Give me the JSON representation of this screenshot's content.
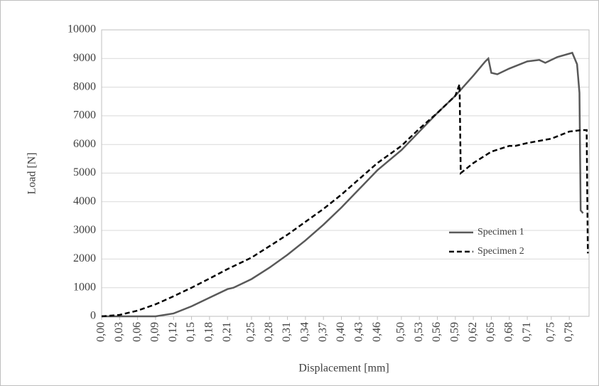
{
  "chart_data": {
    "type": "line",
    "x_label": "Displacement  [mm]",
    "y_label": "Load [N]",
    "xlim": [
      0,
      0.813
    ],
    "ylim": [
      0,
      10000
    ],
    "xticks": [
      {
        "value": 0,
        "label": "0,00"
      },
      {
        "value": 0.03,
        "label": "0,03"
      },
      {
        "value": 0.06,
        "label": "0,06"
      },
      {
        "value": 0.09,
        "label": "0,09"
      },
      {
        "value": 0.12,
        "label": "0,12"
      },
      {
        "value": 0.15,
        "label": "0,15"
      },
      {
        "value": 0.18,
        "label": "0,18"
      },
      {
        "value": 0.21,
        "label": "0,21"
      },
      {
        "value": 0.25,
        "label": "0,25"
      },
      {
        "value": 0.28,
        "label": "0,28"
      },
      {
        "value": 0.31,
        "label": "0,31"
      },
      {
        "value": 0.34,
        "label": "0,34"
      },
      {
        "value": 0.37,
        "label": "0,37"
      },
      {
        "value": 0.4,
        "label": "0,40"
      },
      {
        "value": 0.43,
        "label": "0,43"
      },
      {
        "value": 0.46,
        "label": "0,46"
      },
      {
        "value": 0.5,
        "label": "0,50"
      },
      {
        "value": 0.53,
        "label": "0,53"
      },
      {
        "value": 0.56,
        "label": "0,56"
      },
      {
        "value": 0.59,
        "label": "0,59"
      },
      {
        "value": 0.62,
        "label": "0,62"
      },
      {
        "value": 0.65,
        "label": "0,65"
      },
      {
        "value": 0.68,
        "label": "0,68"
      },
      {
        "value": 0.71,
        "label": "0,71"
      },
      {
        "value": 0.75,
        "label": "0,75"
      },
      {
        "value": 0.78,
        "label": "0,78"
      }
    ],
    "yticks": [
      0,
      1000,
      2000,
      3000,
      4000,
      5000,
      6000,
      7000,
      8000,
      9000,
      10000
    ],
    "grid": true,
    "legend": "right",
    "series": [
      {
        "name": "Specimen 1",
        "color": "#595959",
        "dash": false,
        "x": [
          0,
          0.09,
          0.12,
          0.15,
          0.18,
          0.21,
          0.22,
          0.25,
          0.28,
          0.31,
          0.34,
          0.37,
          0.4,
          0.43,
          0.46,
          0.5,
          0.53,
          0.56,
          0.59,
          0.62,
          0.64,
          0.645,
          0.65,
          0.66,
          0.68,
          0.71,
          0.73,
          0.74,
          0.76,
          0.785,
          0.793,
          0.797,
          0.799,
          0.803
        ],
        "values": [
          0,
          0,
          100,
          350,
          650,
          950,
          1000,
          1300,
          1700,
          2150,
          2650,
          3200,
          3800,
          4450,
          5100,
          5800,
          6450,
          7100,
          7700,
          8400,
          8900,
          9000,
          8500,
          8450,
          8650,
          8900,
          8950,
          8850,
          9050,
          9200,
          8800,
          7800,
          3700,
          3600
        ]
      },
      {
        "name": "Specimen 2",
        "color": "#000000",
        "dash": true,
        "x": [
          0,
          0.03,
          0.06,
          0.09,
          0.12,
          0.15,
          0.18,
          0.21,
          0.25,
          0.28,
          0.31,
          0.34,
          0.37,
          0.4,
          0.43,
          0.46,
          0.5,
          0.53,
          0.56,
          0.59,
          0.597,
          0.599,
          0.62,
          0.65,
          0.68,
          0.69,
          0.71,
          0.75,
          0.78,
          0.8,
          0.809,
          0.811
        ],
        "values": [
          0,
          50,
          200,
          420,
          700,
          1000,
          1320,
          1650,
          2050,
          2450,
          2850,
          3300,
          3750,
          4250,
          4800,
          5350,
          5950,
          6550,
          7100,
          7700,
          8100,
          5000,
          5350,
          5750,
          5950,
          5950,
          6050,
          6200,
          6450,
          6500,
          6500,
          2200
        ]
      }
    ]
  }
}
